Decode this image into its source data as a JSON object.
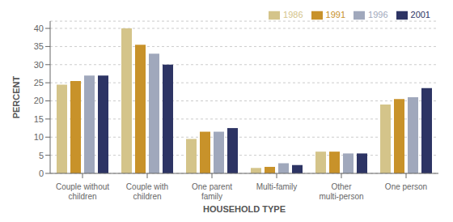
{
  "chart_data": {
    "type": "bar",
    "xlabel": "HOUSEHOLD TYPE",
    "ylabel": "PERCENT",
    "categories": [
      "Couple without\nchildren",
      "Couple with\nchildren",
      "One parent\nfamily",
      "Multi-family",
      "Other\nmulti-person",
      "One person"
    ],
    "series": [
      {
        "name": "1986",
        "color": "#d4c48a",
        "values": [
          24.5,
          40.0,
          9.5,
          1.5,
          6.0,
          19.0
        ]
      },
      {
        "name": "1991",
        "color": "#c8922a",
        "values": [
          25.5,
          35.5,
          11.5,
          1.8,
          6.0,
          20.5
        ]
      },
      {
        "name": "1996",
        "color": "#a0a8bc",
        "values": [
          27.0,
          33.0,
          11.5,
          2.8,
          5.5,
          21.0
        ]
      },
      {
        "name": "2001",
        "color": "#2d3464",
        "values": [
          27.0,
          30.0,
          12.5,
          2.3,
          5.5,
          23.5
        ]
      }
    ],
    "ylim": [
      0,
      42
    ],
    "yticks": [
      0,
      5,
      10,
      15,
      20,
      25,
      30,
      35,
      40
    ],
    "grid": true,
    "legend": "upper right"
  }
}
